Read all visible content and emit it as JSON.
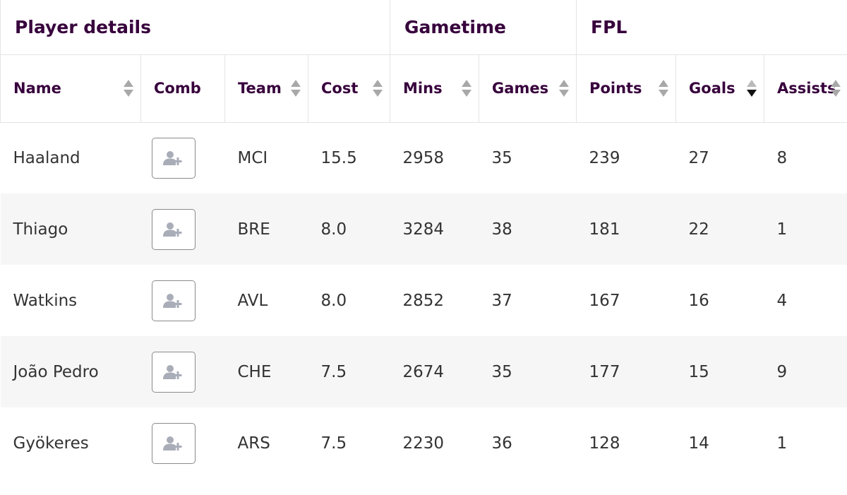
{
  "groups": {
    "player_details": "Player details",
    "gametime": "Gametime",
    "fpl": "FPL"
  },
  "columns": {
    "name": "Name",
    "comb": "Comb",
    "team": "Team",
    "cost": "Cost",
    "mins": "Mins",
    "games": "Games",
    "points": "Points",
    "goals": "Goals",
    "assists": "Assists"
  },
  "sort": {
    "active_column": "Goals",
    "direction": "descending"
  },
  "rows": [
    {
      "name": "Haaland",
      "team": "MCI",
      "cost": "15.5",
      "mins": "2958",
      "games": "35",
      "points": "239",
      "goals": "27",
      "assists": "8"
    },
    {
      "name": "Thiago",
      "team": "BRE",
      "cost": "8.0",
      "mins": "3284",
      "games": "38",
      "points": "181",
      "goals": "22",
      "assists": "1"
    },
    {
      "name": "Watkins",
      "team": "AVL",
      "cost": "8.0",
      "mins": "2852",
      "games": "37",
      "points": "167",
      "goals": "16",
      "assists": "4"
    },
    {
      "name": "João Pedro",
      "team": "CHE",
      "cost": "7.5",
      "mins": "2674",
      "games": "35",
      "points": "177",
      "goals": "15",
      "assists": "9"
    },
    {
      "name": "Gyökeres",
      "team": "ARS",
      "cost": "7.5",
      "mins": "2230",
      "games": "36",
      "points": "128",
      "goals": "14",
      "assists": "1"
    }
  ],
  "icons": {
    "comb_button": "add-user-icon"
  },
  "colors": {
    "header_text": "#37003c",
    "row_alt_bg": "#f6f6f6",
    "icon_gray": "#a9adb8"
  }
}
